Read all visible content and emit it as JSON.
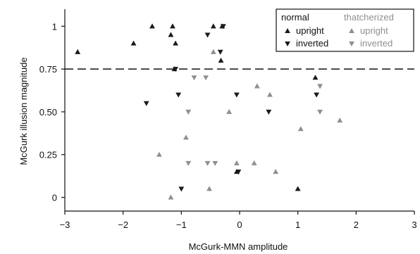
{
  "chart_data": {
    "type": "scatter",
    "xlabel": "McGurk-MMN amplitude",
    "ylabel": "McGurk illusion magnitude",
    "xlim": [
      -3,
      3
    ],
    "ylim": [
      -0.08,
      1.1
    ],
    "x_ticks": [
      -3,
      -2,
      -1,
      0,
      1,
      2,
      3
    ],
    "x_tick_labels": [
      "−3",
      "−2",
      "−1",
      "0",
      "1",
      "2",
      "3"
    ],
    "y_ticks": [
      0,
      0.25,
      0.5,
      0.75,
      1
    ],
    "y_tick_labels": [
      "0",
      "0.25",
      "0.50",
      "0.75",
      "1"
    ],
    "threshold_line": 0.75,
    "legend": {
      "placement": "top-right",
      "groups": [
        {
          "title": "normal",
          "entries": [
            "upright",
            "inverted"
          ]
        },
        {
          "title": "thatcherized",
          "entries": [
            "upright",
            "inverted"
          ]
        }
      ]
    },
    "series": [
      {
        "name": "normal upright",
        "group": "normal",
        "orientation": "upright",
        "color": "#1a1a1a",
        "points": [
          [
            -2.78,
            0.85
          ],
          [
            -1.82,
            0.9
          ],
          [
            -1.5,
            1.0
          ],
          [
            -1.15,
            1.0
          ],
          [
            -1.18,
            0.95
          ],
          [
            -1.1,
            0.9
          ],
          [
            -1.12,
            0.75
          ],
          [
            -0.45,
            1.0
          ],
          [
            -0.3,
            1.0
          ],
          [
            -0.32,
            0.8
          ],
          [
            -0.05,
            0.15
          ],
          [
            1.3,
            0.7
          ],
          [
            1.0,
            0.05
          ]
        ]
      },
      {
        "name": "normal inverted",
        "group": "normal",
        "orientation": "inverted",
        "color": "#1a1a1a",
        "points": [
          [
            -1.6,
            0.55
          ],
          [
            -1.05,
            0.6
          ],
          [
            -1.1,
            0.75
          ],
          [
            -0.55,
            0.95
          ],
          [
            -0.33,
            0.85
          ],
          [
            -0.28,
            1.0
          ],
          [
            -0.05,
            0.6
          ],
          [
            0.5,
            0.5
          ],
          [
            1.32,
            0.6
          ],
          [
            -0.02,
            0.15
          ],
          [
            -1.0,
            0.05
          ]
        ]
      },
      {
        "name": "thatcherized upright",
        "group": "thatcherized",
        "orientation": "upright",
        "color": "#8f8f8f",
        "points": [
          [
            -1.38,
            0.25
          ],
          [
            -1.18,
            0.0
          ],
          [
            -0.92,
            0.35
          ],
          [
            -0.52,
            0.05
          ],
          [
            -0.45,
            0.85
          ],
          [
            -0.18,
            0.5
          ],
          [
            -0.05,
            0.2
          ],
          [
            0.25,
            0.2
          ],
          [
            0.3,
            0.65
          ],
          [
            0.52,
            0.6
          ],
          [
            0.62,
            0.15
          ],
          [
            1.05,
            0.4
          ],
          [
            1.72,
            0.45
          ]
        ]
      },
      {
        "name": "thatcherized inverted",
        "group": "thatcherized",
        "orientation": "inverted",
        "color": "#8f8f8f",
        "points": [
          [
            -0.78,
            0.7
          ],
          [
            -0.58,
            0.7
          ],
          [
            -0.88,
            0.5
          ],
          [
            -0.88,
            0.2
          ],
          [
            -0.55,
            0.2
          ],
          [
            -0.42,
            0.2
          ],
          [
            1.38,
            0.65
          ],
          [
            1.38,
            0.5
          ]
        ]
      }
    ]
  }
}
